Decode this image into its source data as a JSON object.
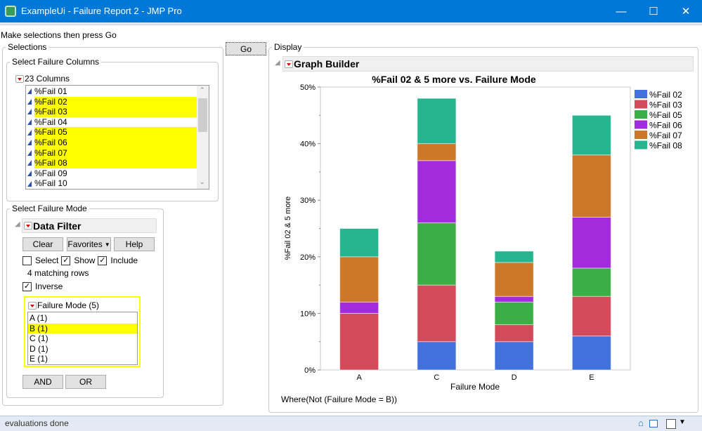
{
  "window": {
    "title": "ExampleUi - Failure Report 2 - JMP Pro",
    "controls": [
      "minimize",
      "maximize",
      "close"
    ]
  },
  "instructions": "Make selections then press Go",
  "go_label": "Go",
  "selections": {
    "title": "Selections",
    "columns_panel": {
      "title": "Select Failure Columns",
      "header": "23 Columns",
      "items": [
        {
          "label": "%Fail 01",
          "selected": false
        },
        {
          "label": "%Fail 02",
          "selected": true
        },
        {
          "label": "%Fail 03",
          "selected": true
        },
        {
          "label": "%Fail 04",
          "selected": false
        },
        {
          "label": "%Fail 05",
          "selected": true
        },
        {
          "label": "%Fail 06",
          "selected": true
        },
        {
          "label": "%Fail 07",
          "selected": true
        },
        {
          "label": "%Fail 08",
          "selected": true
        },
        {
          "label": "%Fail 09",
          "selected": false
        },
        {
          "label": "%Fail 10",
          "selected": false
        }
      ]
    },
    "mode_panel": {
      "title": "Select Failure Mode",
      "filter_title": "Data Filter",
      "clear": "Clear",
      "favorites": "Favorites",
      "help": "Help",
      "select_label": "Select",
      "select_checked": false,
      "show_label": "Show",
      "show_checked": true,
      "include_label": "Include",
      "include_checked": true,
      "matching": "4 matching rows",
      "inverse_label": "Inverse",
      "inverse_checked": true,
      "list_title": "Failure Mode (5)",
      "items": [
        {
          "label": "A (1)",
          "selected": false
        },
        {
          "label": "B (1)",
          "selected": true
        },
        {
          "label": "C (1)",
          "selected": false
        },
        {
          "label": "D (1)",
          "selected": false
        },
        {
          "label": "E (1)",
          "selected": false
        }
      ],
      "and": "AND",
      "or": "OR"
    }
  },
  "display": {
    "title": "Display",
    "graph_builder": "Graph Builder",
    "where": "Where(Not (Failure Mode = B))"
  },
  "status": "evaluations done",
  "chart_data": {
    "type": "bar",
    "stacked": true,
    "title": "%Fail 02 & 5 more vs. Failure Mode",
    "xlabel": "Failure Mode",
    "ylabel": "%Fail 02 & 5 more",
    "categories": [
      "A",
      "C",
      "D",
      "E"
    ],
    "ylim": [
      0,
      50
    ],
    "yticks": [
      0,
      10,
      20,
      30,
      40,
      50
    ],
    "ytick_labels": [
      "0%",
      "10%",
      "20%",
      "30%",
      "40%",
      "50%"
    ],
    "legend_position": "right",
    "series": [
      {
        "name": "%Fail 02",
        "color": "#4371db",
        "values": [
          0,
          5,
          5,
          6
        ]
      },
      {
        "name": "%Fail 03",
        "color": "#d34a5a",
        "values": [
          10,
          10,
          3,
          7
        ]
      },
      {
        "name": "%Fail 05",
        "color": "#3cae46",
        "values": [
          0,
          11,
          4,
          5
        ]
      },
      {
        "name": "%Fail 06",
        "color": "#a22cdd",
        "values": [
          2,
          11,
          1,
          9
        ]
      },
      {
        "name": "%Fail 07",
        "color": "#cb782a",
        "values": [
          8,
          3,
          6,
          11
        ]
      },
      {
        "name": "%Fail 08",
        "color": "#27b58f",
        "values": [
          5,
          8,
          2,
          7
        ]
      }
    ]
  }
}
